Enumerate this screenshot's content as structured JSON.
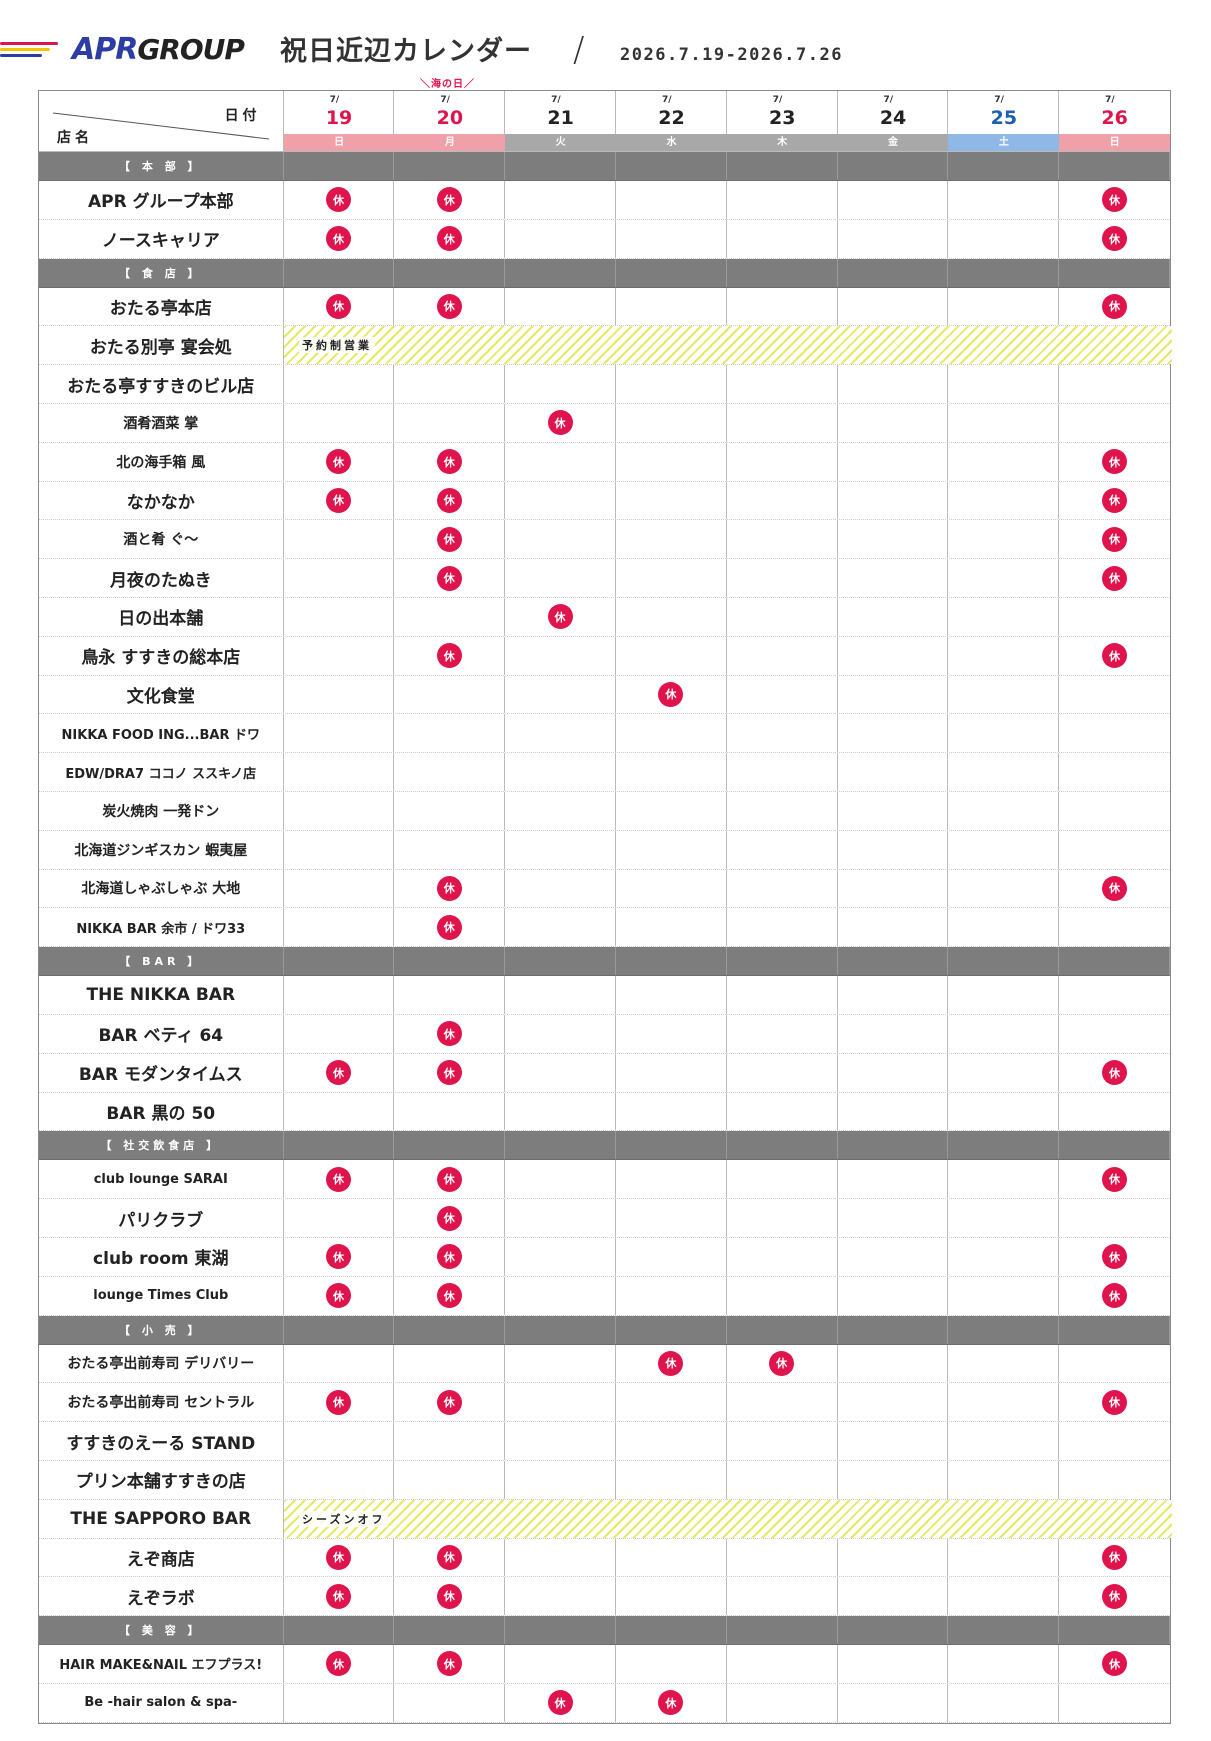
{
  "header": {
    "logo_apr": "APR",
    "logo_group": "GROUP",
    "title": "祝日近辺カレンダー",
    "separator": "/",
    "range": "2026.7.19-2026.7.26",
    "stripe_colors": [
      "#e0144c",
      "#f5c400",
      "#2c3ea3"
    ]
  },
  "table": {
    "corner_date": "日付",
    "corner_shop": "店名",
    "holiday_note": "＼海の日／",
    "closed_label": "休",
    "days": [
      {
        "md": "7/",
        "day": "19",
        "wd": "日",
        "day_color": "#e0144c",
        "wd_bg": "#f0a0a8"
      },
      {
        "md": "7/",
        "day": "20",
        "wd": "月",
        "day_color": "#e0144c",
        "wd_bg": "#f0a0a8"
      },
      {
        "md": "7/",
        "day": "21",
        "wd": "火",
        "day_color": "#222222",
        "wd_bg": "#a8a8a8"
      },
      {
        "md": "7/",
        "day": "22",
        "wd": "水",
        "day_color": "#222222",
        "wd_bg": "#a8a8a8"
      },
      {
        "md": "7/",
        "day": "23",
        "wd": "木",
        "day_color": "#222222",
        "wd_bg": "#a8a8a8"
      },
      {
        "md": "7/",
        "day": "24",
        "wd": "金",
        "day_color": "#222222",
        "wd_bg": "#a8a8a8"
      },
      {
        "md": "7/",
        "day": "25",
        "wd": "土",
        "day_color": "#1d5fb0",
        "wd_bg": "#8fb8e6"
      },
      {
        "md": "7/",
        "day": "26",
        "wd": "日",
        "day_color": "#e0144c",
        "wd_bg": "#f0a0a8"
      }
    ],
    "rows": [
      {
        "type": "section",
        "label": "【 本 部 】"
      },
      {
        "type": "shop",
        "name": "APR グループ本部",
        "closed": [
          0,
          1,
          7
        ]
      },
      {
        "type": "shop",
        "name": "ノースキャリア",
        "closed": [
          0,
          1,
          7
        ]
      },
      {
        "type": "section",
        "label": "【 食 店 】"
      },
      {
        "type": "shop",
        "name": "おたる亭本店",
        "closed": [
          0,
          1,
          7
        ]
      },
      {
        "type": "shop",
        "name": "おたる別亭 宴会処",
        "closed": [],
        "band": "予約制営業"
      },
      {
        "type": "shop",
        "name": "おたる亭すすきのビル店",
        "closed": []
      },
      {
        "type": "shop",
        "name": "酒肴酒菜 掌",
        "closed": [
          2
        ],
        "small": true
      },
      {
        "type": "shop",
        "name": "北の海手箱 風",
        "closed": [
          0,
          1,
          7
        ],
        "small": true
      },
      {
        "type": "shop",
        "name": "なかなか",
        "closed": [
          0,
          1,
          7
        ]
      },
      {
        "type": "shop",
        "name": "酒と肴 ぐ〜",
        "closed": [
          1,
          7
        ],
        "small": true
      },
      {
        "type": "shop",
        "name": "月夜のたぬき",
        "closed": [
          1,
          7
        ]
      },
      {
        "type": "shop",
        "name": "日の出本舗",
        "closed": [
          2
        ]
      },
      {
        "type": "shop",
        "name": "鳥永 すすきの総本店",
        "closed": [
          1,
          7
        ]
      },
      {
        "type": "shop",
        "name": "文化食堂",
        "closed": [
          3
        ]
      },
      {
        "type": "shop",
        "name": "NIKKA FOOD ING...BAR ドワ",
        "closed": [],
        "small": true
      },
      {
        "type": "shop",
        "name": "EDW/DRA7 ココノ ススキノ店",
        "closed": [],
        "small": true
      },
      {
        "type": "shop",
        "name": "炭火焼肉 一発ドン",
        "closed": [],
        "small": true
      },
      {
        "type": "shop",
        "name": "北海道ジンギスカン 蝦夷屋",
        "closed": [],
        "small": true
      },
      {
        "type": "shop",
        "name": "北海道しゃぶしゃぶ 大地",
        "closed": [
          1,
          7
        ],
        "small": true
      },
      {
        "type": "shop",
        "name": "NIKKA BAR 余市 / ドワ33",
        "closed": [
          1
        ]
      },
      {
        "type": "section",
        "label": "【 BAR 】"
      },
      {
        "type": "shop",
        "name": "THE NIKKA BAR",
        "closed": []
      },
      {
        "type": "shop",
        "name": "BAR ベティ 64",
        "closed": [
          1
        ]
      },
      {
        "type": "shop",
        "name": "BAR モダンタイムス",
        "closed": [
          0,
          1,
          7
        ]
      },
      {
        "type": "shop",
        "name": "BAR 黒の 50",
        "closed": []
      },
      {
        "type": "section",
        "label": "【 社交飲食店 】"
      },
      {
        "type": "shop",
        "name": "club lounge SARAI",
        "closed": [
          0,
          1,
          7
        ]
      },
      {
        "type": "shop",
        "name": "パリクラブ",
        "closed": [
          1
        ]
      },
      {
        "type": "shop",
        "name": "club room 東湖",
        "closed": [
          0,
          1,
          7
        ]
      },
      {
        "type": "shop",
        "name": "lounge Times Club",
        "closed": [
          0,
          1,
          7
        ]
      },
      {
        "type": "section",
        "label": "【 小 売 】"
      },
      {
        "type": "shop",
        "name": "おたる亭出前寿司 デリバリー",
        "closed": [
          3,
          4
        ],
        "small": true
      },
      {
        "type": "shop",
        "name": "おたる亭出前寿司 セントラル",
        "closed": [
          0,
          1,
          7
        ],
        "small": true
      },
      {
        "type": "shop",
        "name": "すすきのえーる STAND",
        "closed": []
      },
      {
        "type": "shop",
        "name": "プリン本舗すすきの店",
        "closed": []
      },
      {
        "type": "shop",
        "name": "THE SAPPORO BAR",
        "closed": [],
        "band": "シーズンオフ"
      },
      {
        "type": "shop",
        "name": "えぞ商店",
        "closed": [
          0,
          1,
          7
        ]
      },
      {
        "type": "shop",
        "name": "えぞラボ",
        "closed": [
          0,
          1,
          7
        ]
      },
      {
        "type": "section",
        "label": "【 美 容 】"
      },
      {
        "type": "shop",
        "name": "HAIR MAKE&NAIL エフプラス!",
        "closed": [
          0,
          1,
          7
        ],
        "small": true
      },
      {
        "type": "shop",
        "name": "Be -hair salon & spa-",
        "closed": [
          2,
          3
        ]
      }
    ]
  }
}
